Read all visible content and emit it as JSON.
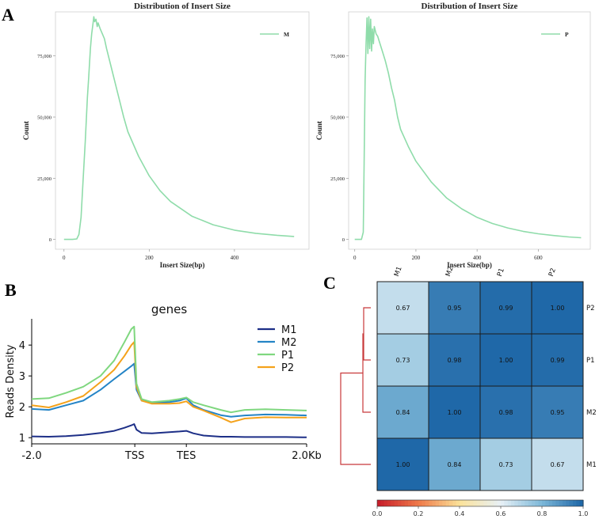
{
  "colors": {
    "insert_line": "#8fdcaa",
    "M1": "#1d2f87",
    "M2": "#2484c6",
    "P1": "#7fd77f",
    "P2": "#f4a21b",
    "dendrogram": "#c8383a"
  },
  "chart_data": [
    {
      "panel": "A",
      "type": "line",
      "title": "Distribution of Insert Size",
      "xlabel": "Insert Size(bp)",
      "ylabel": "Count",
      "xlim": [
        -20,
        575
      ],
      "ylim": [
        -4000,
        93000
      ],
      "xticks": [
        0,
        200,
        400
      ],
      "xtick_labels": [
        "0",
        "200",
        "400"
      ],
      "yticks": [
        0,
        25000,
        50000,
        75000
      ],
      "ytick_labels": [
        "0",
        "25,000",
        "50,000",
        "75,000"
      ],
      "legend": "M",
      "legend_position": "top-right",
      "x": [
        0,
        20,
        30,
        35,
        40,
        45,
        50,
        55,
        58,
        62,
        65,
        68,
        70,
        72,
        75,
        78,
        80,
        85,
        90,
        95,
        100,
        110,
        120,
        130,
        140,
        150,
        175,
        200,
        225,
        250,
        300,
        350,
        400,
        450,
        500,
        540
      ],
      "y": [
        0,
        0,
        200,
        2000,
        9000,
        25000,
        40000,
        58000,
        66000,
        78000,
        84000,
        88000,
        91000,
        89000,
        90000,
        87000,
        88500,
        86000,
        84000,
        82000,
        78000,
        71000,
        64000,
        57000,
        50000,
        44000,
        34000,
        26000,
        20000,
        15500,
        9500,
        6000,
        3800,
        2500,
        1700,
        1200
      ]
    },
    {
      "panel": "A",
      "type": "line",
      "title": "Distribution of Insert Size",
      "xlabel": "Insert Size(bp)",
      "ylabel": "Count",
      "xlim": [
        -20,
        770
      ],
      "ylim": [
        -4000,
        93000
      ],
      "xticks": [
        0,
        200,
        400,
        600
      ],
      "xtick_labels": [
        "0",
        "200",
        "400",
        "600"
      ],
      "yticks": [
        0,
        25000,
        50000,
        75000
      ],
      "ytick_labels": [
        "0",
        "25,000",
        "50,000",
        "75,000"
      ],
      "legend": "P",
      "legend_position": "top-right",
      "x": [
        0,
        22,
        28,
        31,
        34,
        37,
        40,
        43,
        46,
        49,
        52,
        55,
        58,
        61,
        64,
        70,
        75,
        80,
        90,
        100,
        110,
        120,
        130,
        140,
        150,
        175,
        200,
        250,
        300,
        350,
        400,
        450,
        500,
        550,
        600,
        650,
        700,
        740
      ],
      "y": [
        0,
        0,
        3000,
        35000,
        65000,
        80000,
        90500,
        76000,
        91000,
        78000,
        90000,
        77000,
        86000,
        80000,
        87000,
        84000,
        83000,
        81000,
        77000,
        73000,
        68000,
        62000,
        57000,
        50000,
        45000,
        38000,
        32000,
        23500,
        17000,
        12500,
        9000,
        6500,
        4700,
        3300,
        2300,
        1600,
        1000,
        700
      ]
    },
    {
      "panel": "B",
      "type": "line",
      "title": "genes",
      "xlabel": "",
      "ylabel": "Reads Density",
      "xlim": [
        0,
        8
      ],
      "ylim": [
        0.8,
        4.85
      ],
      "xticks": [
        0,
        3,
        4.5,
        8
      ],
      "xtick_labels": [
        "-2.0",
        "TSS",
        "TES",
        "2.0Kb"
      ],
      "yticks": [
        1,
        2,
        3,
        4
      ],
      "ytick_labels": [
        "1",
        "2",
        "3",
        "4"
      ],
      "legend_position": "top-right",
      "x": [
        0,
        0.5,
        1.0,
        1.5,
        2.0,
        2.4,
        2.7,
        2.9,
        2.98,
        3.05,
        3.2,
        3.5,
        4.0,
        4.3,
        4.5,
        4.7,
        5.0,
        5.5,
        5.8,
        6.2,
        6.8,
        7.4,
        8.0
      ],
      "series": [
        {
          "name": "M1",
          "values": [
            1.04,
            1.03,
            1.05,
            1.09,
            1.15,
            1.22,
            1.32,
            1.4,
            1.44,
            1.26,
            1.15,
            1.14,
            1.18,
            1.2,
            1.22,
            1.14,
            1.07,
            1.03,
            1.03,
            1.02,
            1.02,
            1.02,
            1.01
          ]
        },
        {
          "name": "M2",
          "values": [
            1.93,
            1.9,
            2.05,
            2.2,
            2.55,
            2.9,
            3.15,
            3.32,
            3.4,
            2.55,
            2.2,
            2.12,
            2.15,
            2.2,
            2.28,
            2.05,
            1.9,
            1.73,
            1.68,
            1.72,
            1.75,
            1.74,
            1.72
          ]
        },
        {
          "name": "P1",
          "values": [
            2.25,
            2.28,
            2.45,
            2.65,
            3.0,
            3.5,
            4.1,
            4.52,
            4.6,
            2.75,
            2.25,
            2.15,
            2.2,
            2.25,
            2.3,
            2.15,
            2.05,
            1.9,
            1.82,
            1.9,
            1.92,
            1.9,
            1.88
          ]
        },
        {
          "name": "P2",
          "values": [
            2.05,
            1.98,
            2.15,
            2.35,
            2.8,
            3.2,
            3.65,
            4.0,
            4.1,
            2.65,
            2.2,
            2.1,
            2.1,
            2.12,
            2.18,
            2.0,
            1.88,
            1.65,
            1.5,
            1.62,
            1.66,
            1.65,
            1.65
          ]
        }
      ]
    },
    {
      "panel": "C",
      "type": "heatmap",
      "col_labels": [
        "M1",
        "M2",
        "P1",
        "P2"
      ],
      "row_labels": [
        "P2",
        "P1",
        "M2",
        "M1"
      ],
      "values": [
        [
          0.67,
          0.95,
          0.99,
          1.0
        ],
        [
          0.73,
          0.98,
          1.0,
          0.99
        ],
        [
          0.84,
          1.0,
          0.98,
          0.95
        ],
        [
          1.0,
          0.84,
          0.73,
          0.67
        ]
      ],
      "value_labels": [
        [
          "0.67",
          "0.95",
          "0.99",
          "1.00"
        ],
        [
          "0.73",
          "0.98",
          "1.00",
          "0.99"
        ],
        [
          "0.84",
          "1.00",
          "0.98",
          "0.95"
        ],
        [
          "1.00",
          "0.84",
          "0.73",
          "0.67"
        ]
      ],
      "colorbar": {
        "range": [
          0,
          1
        ],
        "ticks": [
          0,
          0.2,
          0.4,
          0.6,
          0.8,
          1.0
        ],
        "tick_labels": [
          "0.0",
          "0.2",
          "0.4",
          "0.6",
          "0.8",
          "1.0"
        ],
        "colors": [
          "#c81f2a",
          "#ef7c4b",
          "#fbe29a",
          "#e8f1f6",
          "#7fb9d9",
          "#1f68a8"
        ]
      },
      "dendrogram": "rows"
    }
  ],
  "panels": {
    "a": "A",
    "b": "B",
    "c": "C"
  }
}
